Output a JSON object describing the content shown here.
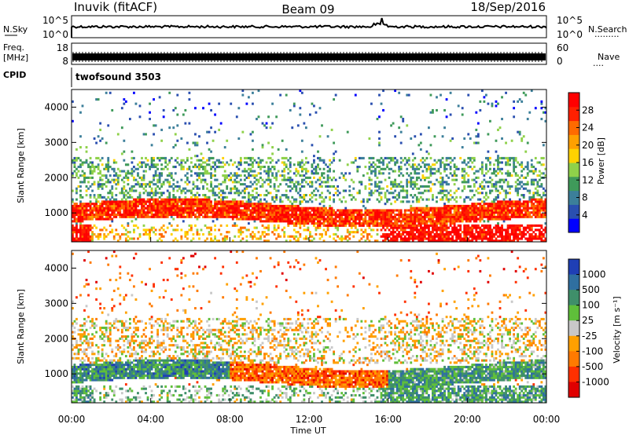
{
  "header": {
    "station": "Inuvik (fitACF)",
    "beam": "Beam 09",
    "date": "18/Sep/2016"
  },
  "strips": {
    "nsky": {
      "label": "N.Sky",
      "ticks_left": [
        "10^5",
        "10^0"
      ],
      "ticks_right": [
        "10^5",
        "10^0"
      ],
      "right_label": "N.Search",
      "right_dots": "·········"
    },
    "freq": {
      "label_line1": "Freq.",
      "label_line2": "[MHz]",
      "ticks_left": [
        "18",
        "8"
      ],
      "ticks_right": [
        "60",
        "0"
      ],
      "right_label": "Nave",
      "right_dots": "····"
    },
    "cpid": {
      "label": "CPID",
      "text": "twofsound 3503"
    }
  },
  "chart_data": [
    {
      "type": "heatmap",
      "title": "",
      "xlabel": "",
      "ylabel": "Slant Range [km]",
      "xlim_hours": [
        0,
        24
      ],
      "ylim_km": [
        180,
        4500
      ],
      "y_ticks": [
        "1000",
        "2000",
        "3000",
        "4000"
      ],
      "colorbar": {
        "label": "Power [dB]",
        "ticks": [
          "4",
          "8",
          "12",
          "16",
          "20",
          "24",
          "28"
        ],
        "colors": [
          "#0000ff",
          "#2a4fb0",
          "#3c7f9a",
          "#3f9a5a",
          "#8fd14a",
          "#ffd200",
          "#ffa000",
          "#ff6a00",
          "#ff2000",
          "#ff0000"
        ]
      },
      "bands": [
        {
          "t0": 0,
          "t1": 24,
          "r0": 800,
          "r1": 1250,
          "level": 0.85
        },
        {
          "t0": 0,
          "t1": 3.5,
          "r0": 1300,
          "r1": 2600,
          "level": 0.35
        },
        {
          "t0": 3.5,
          "t1": 8.5,
          "r0": 1300,
          "r1": 2400,
          "level": 0.4
        },
        {
          "t0": 9,
          "t1": 13,
          "r0": 1400,
          "r1": 2500,
          "level": 0.45
        },
        {
          "t0": 15.5,
          "t1": 24,
          "r0": 200,
          "r1": 700,
          "level": 0.95
        }
      ]
    },
    {
      "type": "heatmap",
      "title": "",
      "xlabel": "Time UT",
      "ylabel": "Slant Range [km]",
      "xlim_hours": [
        0,
        24
      ],
      "ylim_km": [
        180,
        4500
      ],
      "x_ticks": [
        "00:00",
        "04:00",
        "08:00",
        "12:00",
        "16:00",
        "20:00",
        "00:00"
      ],
      "y_ticks": [
        "1000",
        "2000",
        "3000",
        "4000"
      ],
      "colorbar": {
        "label": "Velocity [m s⁻¹]",
        "ticks": [
          "1000",
          "500",
          "100",
          "25",
          "-25",
          "-100",
          "-500",
          "-1000"
        ],
        "colors": [
          "#1f3fb5",
          "#2f6fa0",
          "#3f8f6a",
          "#5fbf3a",
          "#c8c8c8",
          "#ffa000",
          "#ff7a00",
          "#ff3000",
          "#e00000"
        ]
      }
    }
  ]
}
